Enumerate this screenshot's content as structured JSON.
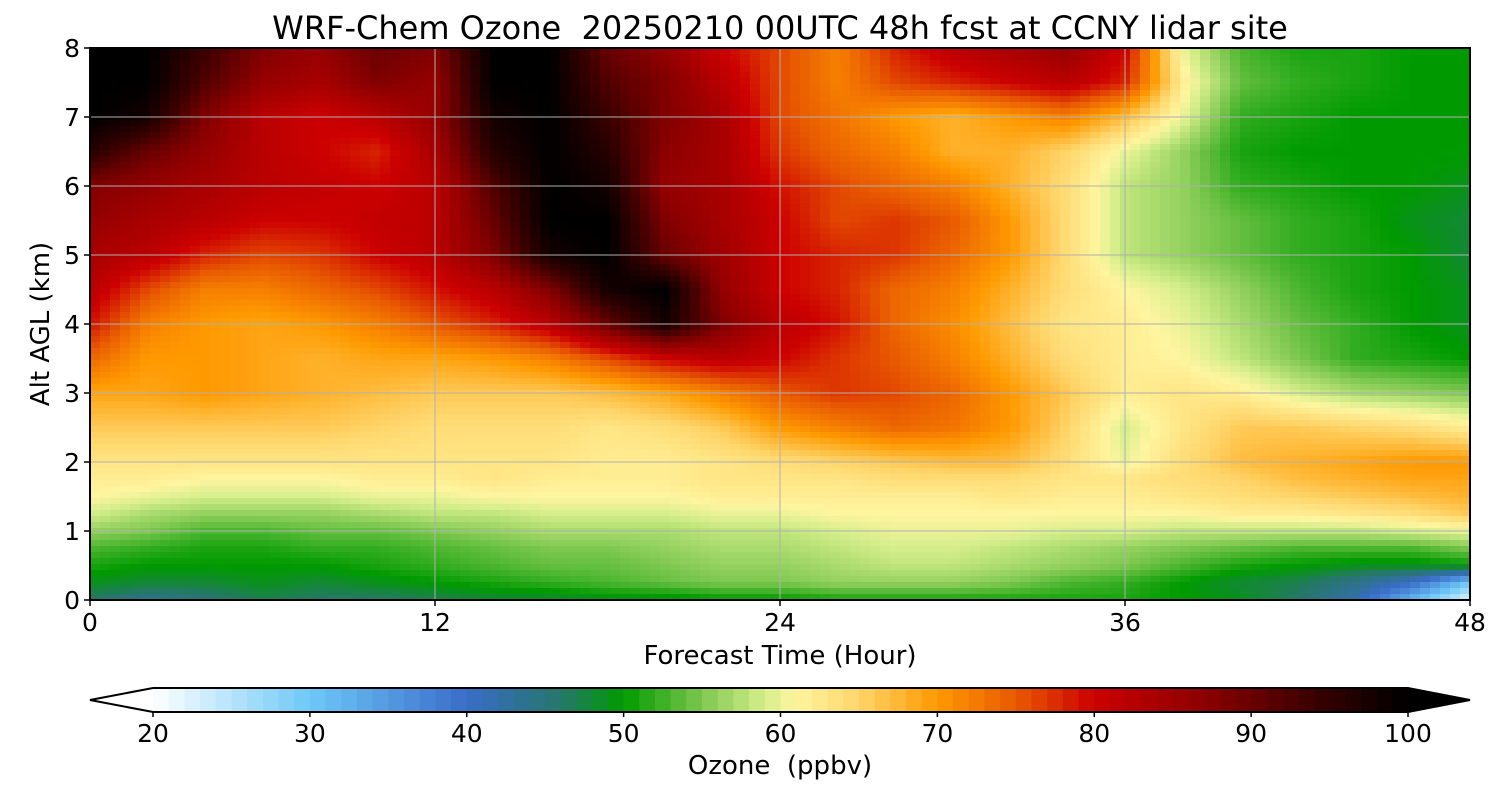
{
  "chart_data": {
    "type": "heatmap",
    "title": "WRF-Chem Ozone  20250210 00UTC 48h fcst at CCNY lidar site",
    "xlabel": "Forecast Time (Hour)",
    "ylabel": "Alt AGL (km)",
    "xlim": [
      0,
      48
    ],
    "ylim": [
      0,
      8
    ],
    "x_ticks": [
      0,
      12,
      24,
      36,
      48
    ],
    "y_ticks": [
      0,
      1,
      2,
      3,
      4,
      5,
      6,
      7,
      8
    ],
    "grid": true,
    "colorbar": {
      "label": "Ozone  (ppbv)",
      "range": [
        20,
        100
      ],
      "ticks": [
        20,
        30,
        40,
        50,
        60,
        70,
        80,
        90,
        100
      ],
      "extend": "both",
      "colors": [
        {
          "v": 20,
          "c": "#ffffff"
        },
        {
          "v": 30,
          "c": "#6ec8f8"
        },
        {
          "v": 40,
          "c": "#3a6cc8"
        },
        {
          "v": 46,
          "c": "#26766a"
        },
        {
          "v": 50,
          "c": "#009a00"
        },
        {
          "v": 55,
          "c": "#7ec850"
        },
        {
          "v": 59,
          "c": "#d6ee8c"
        },
        {
          "v": 61,
          "c": "#fff5a0"
        },
        {
          "v": 65,
          "c": "#ffd56a"
        },
        {
          "v": 70,
          "c": "#ff9900"
        },
        {
          "v": 75,
          "c": "#e85a00"
        },
        {
          "v": 80,
          "c": "#cc0000"
        },
        {
          "v": 87,
          "c": "#8c0000"
        },
        {
          "v": 94,
          "c": "#3a0000"
        },
        {
          "v": 100,
          "c": "#000000"
        }
      ]
    },
    "x": [
      0,
      2,
      4,
      6,
      8,
      10,
      12,
      14,
      16,
      18,
      20,
      22,
      24,
      26,
      28,
      30,
      32,
      34,
      36,
      38,
      40,
      42,
      44,
      46,
      48
    ],
    "y": [
      0,
      0.25,
      0.5,
      0.75,
      1.0,
      1.25,
      1.5,
      1.75,
      2.0,
      2.5,
      3.0,
      3.5,
      4.0,
      4.5,
      5.0,
      5.5,
      6.0,
      6.5,
      7.0,
      7.5,
      8.0
    ],
    "z": [
      [
        46,
        44,
        45,
        47,
        46,
        46,
        47,
        48,
        48,
        49,
        49,
        50,
        50,
        51,
        51,
        51,
        51,
        51,
        51,
        50,
        49,
        46,
        42,
        32,
        22
      ],
      [
        49,
        48,
        48,
        49,
        48,
        49,
        50,
        51,
        52,
        53,
        54,
        55,
        55,
        56,
        56,
        56,
        55,
        53,
        52,
        50,
        48,
        47,
        44,
        40,
        30
      ],
      [
        51,
        50,
        50,
        50,
        50,
        51,
        52,
        53,
        54,
        54,
        55,
        56,
        56,
        57,
        58,
        58,
        57,
        56,
        55,
        53,
        51,
        50,
        49,
        49,
        50
      ],
      [
        53,
        52,
        51,
        51,
        52,
        52,
        53,
        54,
        55,
        55,
        56,
        57,
        57,
        58,
        59,
        59,
        58,
        57,
        56,
        55,
        54,
        53,
        53,
        53,
        55
      ],
      [
        56,
        55,
        53,
        53,
        54,
        54,
        55,
        56,
        57,
        57,
        57,
        58,
        58,
        59,
        60,
        60,
        60,
        59,
        59,
        58,
        58,
        58,
        58,
        59,
        60
      ],
      [
        59,
        57,
        56,
        56,
        56,
        57,
        58,
        58,
        59,
        59,
        59,
        60,
        60,
        61,
        61,
        61,
        61,
        61,
        61,
        61,
        62,
        62,
        63,
        64,
        66
      ],
      [
        61,
        60,
        59,
        59,
        59,
        60,
        60,
        61,
        61,
        61,
        61,
        62,
        62,
        62,
        62,
        62,
        63,
        62,
        62,
        63,
        64,
        65,
        66,
        67,
        68
      ],
      [
        62,
        62,
        61,
        61,
        61,
        62,
        62,
        63,
        62,
        62,
        62,
        63,
        63,
        63,
        64,
        64,
        64,
        63,
        63,
        64,
        65,
        67,
        68,
        69,
        69
      ],
      [
        63,
        63,
        63,
        63,
        63,
        63,
        63,
        63,
        63,
        62,
        62,
        63,
        64,
        65,
        66,
        67,
        67,
        64,
        60,
        64,
        67,
        68,
        69,
        70,
        70
      ],
      [
        66,
        66,
        66,
        66,
        66,
        65,
        64,
        64,
        64,
        63,
        64,
        66,
        70,
        72,
        74,
        73,
        70,
        65,
        59,
        63,
        66,
        66,
        65,
        64,
        62
      ],
      [
        69,
        69,
        70,
        69,
        68,
        67,
        66,
        66,
        66,
        67,
        69,
        72,
        75,
        77,
        76,
        74,
        70,
        66,
        62,
        63,
        62,
        59,
        57,
        56,
        55
      ],
      [
        74,
        70,
        70,
        69,
        68,
        69,
        69,
        70,
        72,
        76,
        80,
        82,
        80,
        77,
        75,
        72,
        68,
        64,
        62,
        61,
        58,
        55,
        52,
        51,
        50
      ],
      [
        79,
        72,
        70,
        69,
        70,
        72,
        75,
        78,
        82,
        90,
        98,
        88,
        82,
        79,
        74,
        71,
        67,
        63,
        62,
        60,
        57,
        54,
        52,
        50,
        49
      ],
      [
        82,
        76,
        72,
        72,
        74,
        76,
        79,
        82,
        88,
        98,
        100,
        86,
        80,
        78,
        74,
        72,
        68,
        64,
        61,
        59,
        56,
        53,
        51,
        50,
        49
      ],
      [
        84,
        82,
        78,
        76,
        77,
        80,
        82,
        88,
        98,
        100,
        90,
        85,
        80,
        78,
        77,
        74,
        70,
        64,
        58,
        56,
        54,
        52,
        51,
        50,
        48
      ],
      [
        86,
        84,
        82,
        80,
        80,
        81,
        82,
        90,
        100,
        100,
        88,
        84,
        80,
        76,
        77,
        75,
        70,
        64,
        58,
        56,
        54,
        52,
        51,
        49,
        48
      ],
      [
        88,
        86,
        84,
        82,
        81,
        80,
        82,
        92,
        100,
        98,
        86,
        84,
        79,
        76,
        74,
        72,
        68,
        64,
        58,
        56,
        52,
        51,
        50,
        50,
        49
      ],
      [
        96,
        90,
        86,
        82,
        80,
        78,
        84,
        96,
        100,
        96,
        87,
        84,
        77,
        74,
        72,
        68,
        68,
        65,
        60,
        56,
        51,
        50,
        50,
        50,
        50
      ],
      [
        100,
        98,
        88,
        82,
        80,
        82,
        86,
        98,
        100,
        94,
        88,
        84,
        76,
        73,
        70,
        68,
        70,
        72,
        67,
        60,
        52,
        51,
        50,
        50,
        50
      ],
      [
        100,
        100,
        92,
        86,
        84,
        88,
        86,
        100,
        100,
        92,
        88,
        82,
        76,
        72,
        76,
        78,
        80,
        82,
        78,
        62,
        54,
        52,
        51,
        50,
        50
      ],
      [
        100,
        100,
        94,
        88,
        86,
        90,
        88,
        100,
        100,
        90,
        86,
        80,
        76,
        72,
        78,
        82,
        84,
        86,
        80,
        60,
        53,
        51,
        51,
        50,
        50
      ]
    ]
  }
}
